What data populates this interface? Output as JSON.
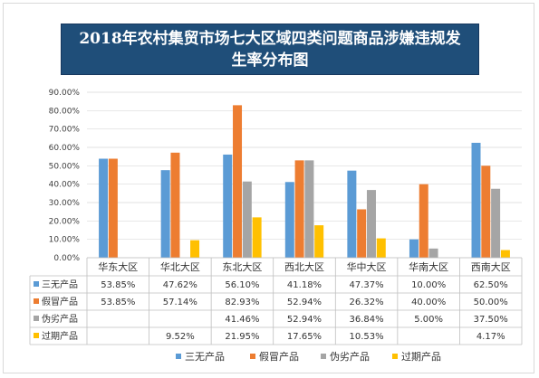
{
  "chart_data": {
    "type": "bar",
    "title": "2018年农村集贸市场七大区域四类问题商品涉嫌违规发生率分布图",
    "categories": [
      "华东大区",
      "华北大区",
      "东北大区",
      "西北大区",
      "华中大区",
      "华南大区",
      "西南大区"
    ],
    "ylim": [
      0,
      90
    ],
    "yticks": [
      "0.00%",
      "10.00%",
      "20.00%",
      "30.00%",
      "40.00%",
      "50.00%",
      "60.00%",
      "70.00%",
      "80.00%",
      "90.00%"
    ],
    "grid": true,
    "legend_position": "bottom",
    "series": [
      {
        "name": "三无产品",
        "color": "#5b9bd5",
        "values": [
          53.85,
          47.62,
          56.1,
          41.18,
          47.37,
          10.0,
          62.5
        ],
        "labels": [
          "53.85%",
          "47.62%",
          "56.10%",
          "41.18%",
          "47.37%",
          "10.00%",
          "62.50%"
        ]
      },
      {
        "name": "假冒产品",
        "color": "#ed7d31",
        "values": [
          53.85,
          57.14,
          82.93,
          52.94,
          26.32,
          40.0,
          50.0
        ],
        "labels": [
          "53.85%",
          "57.14%",
          "82.93%",
          "52.94%",
          "26.32%",
          "40.00%",
          "50.00%"
        ]
      },
      {
        "name": "伪劣产品",
        "color": "#a5a5a5",
        "values": [
          null,
          null,
          41.46,
          52.94,
          36.84,
          5.0,
          37.5
        ],
        "labels": [
          "",
          "",
          "41.46%",
          "52.94%",
          "36.84%",
          "5.00%",
          "37.50%"
        ]
      },
      {
        "name": "过期产品",
        "color": "#ffc000",
        "values": [
          null,
          9.52,
          21.95,
          17.65,
          10.53,
          null,
          4.17
        ],
        "labels": [
          "",
          "9.52%",
          "21.95%",
          "17.65%",
          "10.53%",
          "",
          "4.17%"
        ]
      }
    ]
  }
}
